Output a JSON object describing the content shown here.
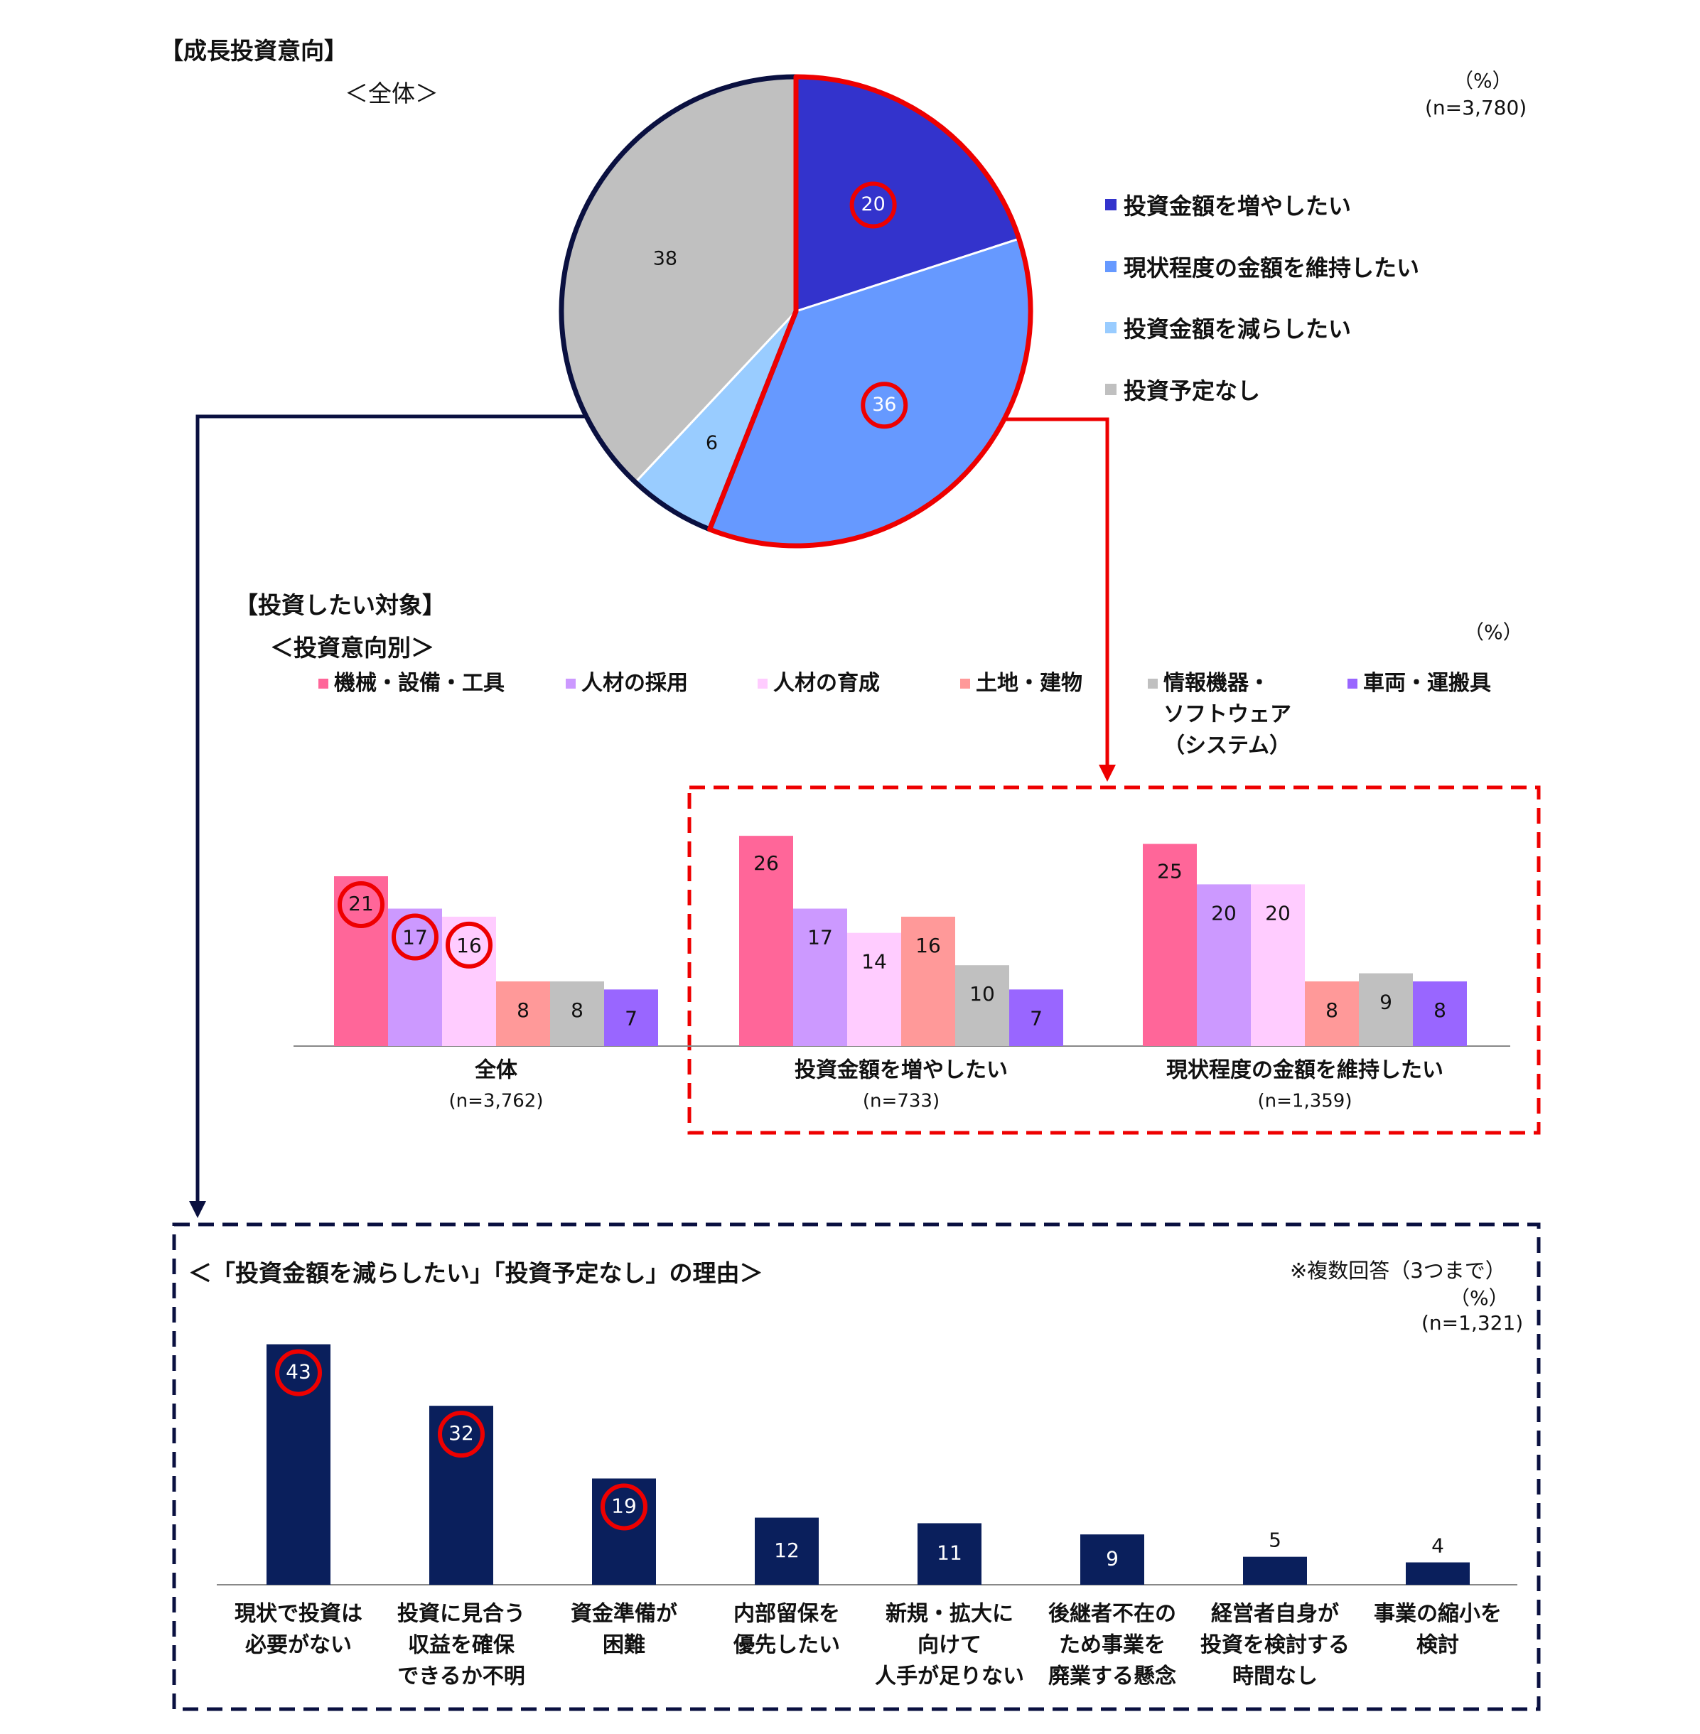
{
  "growth_title": "【成長投資意向】",
  "growth_subtitle": "＜全体＞",
  "pie_unit": "（%）",
  "pie_n": "(n=3,780)",
  "targets_title": "【投資したい対象】",
  "targets_subtitle": "＜投資意向別＞",
  "targets_unit": "（%）",
  "reasons_title": "＜「投資金額を減らしたい」「投資予定なし」の理由＞",
  "reasons_note": "※複数回答（3つまで）",
  "reasons_unit": "（%）",
  "reasons_n": "(n=1,321)",
  "colors": {
    "pie": [
      "#3333cc",
      "#6699ff",
      "#99ccff",
      "#c0c0c0"
    ],
    "groups": [
      "#ff6699",
      "#cc99ff",
      "#ffccff",
      "#ff9999",
      "#c0c0c0",
      "#9966ff"
    ],
    "reasons": "#0a1f5c",
    "highlight_red": "#ee0000",
    "highlight_navy": "#0a1040"
  },
  "chart_data": [
    {
      "type": "pie",
      "categories": [
        "投資金額を増やしたい",
        "現状程度の金額を維持したい",
        "投資金額を減らしたい",
        "投資予定なし"
      ],
      "values": [
        20,
        36,
        6,
        38
      ],
      "highlighted": [
        "20",
        "36"
      ]
    },
    {
      "type": "bar",
      "categories": [
        "全体",
        "投資金額を増やしたい",
        "現状程度の金額を維持したい"
      ],
      "category_n": [
        "(n=3,762)",
        "(n=733)",
        "(n=1,359)"
      ],
      "legend": [
        "機械・設備・工具",
        "人材の採用",
        "人材の育成",
        "土地・建物",
        "情報機器・ソフトウェア（システム）",
        "車両・運搬具"
      ],
      "legend_lines": [
        [
          "機械・設備・工具"
        ],
        [
          "人材の採用"
        ],
        [
          "人材の育成"
        ],
        [
          "土地・建物"
        ],
        [
          "情報機器・",
          "ソフトウェア",
          "（システム）"
        ],
        [
          "車両・運搬具"
        ]
      ],
      "series": [
        {
          "name": "機械・設備・工具",
          "values": [
            21,
            26,
            25
          ]
        },
        {
          "name": "人材の採用",
          "values": [
            17,
            17,
            20
          ]
        },
        {
          "name": "人材の育成",
          "values": [
            16,
            14,
            20
          ]
        },
        {
          "name": "土地・建物",
          "values": [
            8,
            16,
            8
          ]
        },
        {
          "name": "情報機器・ソフトウェア（システム）",
          "values": [
            8,
            10,
            9
          ]
        },
        {
          "name": "車両・運搬具",
          "values": [
            7,
            7,
            8
          ]
        }
      ],
      "highlighted": [
        "21",
        "17",
        "16"
      ]
    },
    {
      "type": "bar",
      "categories": [
        "現状で投資は必要がない",
        "投資に見合う収益を確保できるか不明",
        "資金準備が困難",
        "内部留保を優先したい",
        "新規・拡大に向けて人手が足りない",
        "後継者不在のため事業を廃業する懸念",
        "経営者自身が投資を検討する時間なし",
        "事業の縮小を検討"
      ],
      "category_lines": [
        [
          "現状で投資は",
          "必要がない"
        ],
        [
          "投資に見合う",
          "収益を確保",
          "できるか不明"
        ],
        [
          "資金準備が",
          "困難"
        ],
        [
          "内部留保を",
          "優先したい"
        ],
        [
          "新規・拡大に",
          "向けて",
          "人手が足りない"
        ],
        [
          "後継者不在の",
          "ため事業を",
          "廃業する懸念"
        ],
        [
          "経営者自身が",
          "投資を検討する",
          "時間なし"
        ],
        [
          "事業の縮小を",
          "検討"
        ]
      ],
      "values": [
        43,
        32,
        19,
        12,
        11,
        9,
        5,
        4
      ],
      "highlighted": [
        "43",
        "32",
        "19"
      ]
    }
  ]
}
